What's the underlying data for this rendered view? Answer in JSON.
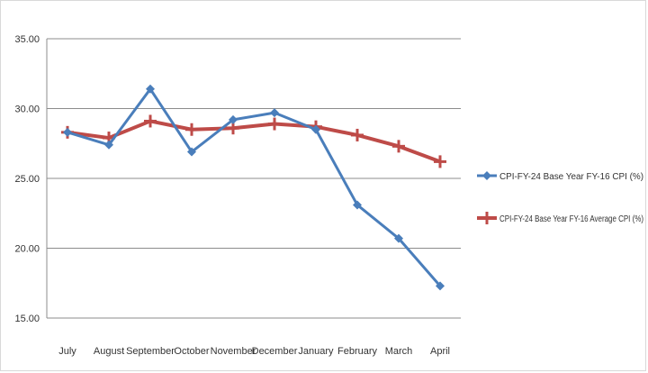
{
  "chart_data": {
    "type": "line",
    "categories": [
      "July",
      "August",
      "September",
      "October",
      "November",
      "December",
      "January",
      "February",
      "March",
      "April"
    ],
    "ylim": [
      15,
      35
    ],
    "yticks": [
      "15.00",
      "20.00",
      "25.00",
      "30.00",
      "35.00"
    ],
    "grid": "horizontal",
    "legend_position": "right",
    "series": [
      {
        "name": "CPI-FY-24 Base Year FY-16 CPI (%)",
        "color": "#4a7ebb",
        "marker": "diamond",
        "values": [
          28.3,
          27.4,
          31.4,
          26.9,
          29.2,
          29.7,
          28.5,
          23.1,
          20.7,
          17.3
        ]
      },
      {
        "name": "CPI-FY-24 Base Year FY-16 Average CPI (%)",
        "color": "#be4b48",
        "marker": "plus",
        "values": [
          28.3,
          27.9,
          29.1,
          28.5,
          28.6,
          28.9,
          28.7,
          28.1,
          27.3,
          26.2
        ]
      }
    ]
  }
}
